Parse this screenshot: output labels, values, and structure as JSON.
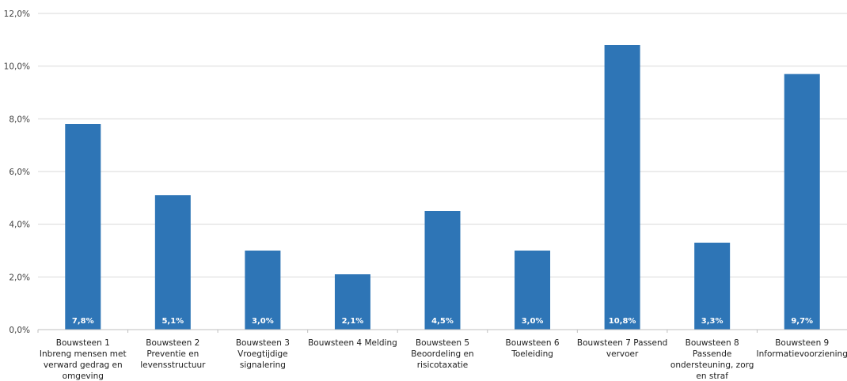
{
  "chart_data": {
    "type": "bar",
    "title": "",
    "xlabel": "",
    "ylabel": "",
    "ylim": [
      0,
      12
    ],
    "yticks": [
      "0,0%",
      "2,0%",
      "4,0%",
      "6,0%",
      "8,0%",
      "10,0%",
      "12,0%"
    ],
    "grid": true,
    "legend": "none",
    "bar_color": "#2e75b6",
    "categories": [
      [
        "Bouwsteen 1",
        "Inbreng mensen met",
        "verward gedrag en",
        "omgeving"
      ],
      [
        "Bouwsteen 2",
        "Preventie en",
        "levensstructuur"
      ],
      [
        "Bouwsteen 3",
        "Vroegtijdige",
        "signalering"
      ],
      [
        "Bouwsteen 4 Melding"
      ],
      [
        "Bouwsteen 5",
        "Beoordeling en",
        "risicotaxatie"
      ],
      [
        "Bouwsteen 6",
        "Toeleiding"
      ],
      [
        "Bouwsteen 7 Passend",
        "vervoer"
      ],
      [
        "Bouwsteen 8",
        "Passende",
        "ondersteuning, zorg",
        "en straf"
      ],
      [
        "Bouwsteen 9",
        "Informatievoorziening"
      ]
    ],
    "values": [
      7.8,
      5.1,
      3.0,
      2.1,
      4.5,
      3.0,
      10.8,
      3.3,
      9.7
    ],
    "data_labels": [
      "7,8%",
      "5,1%",
      "3,0%",
      "2,1%",
      "4,5%",
      "3,0%",
      "10,8%",
      "3,3%",
      "9,7%"
    ]
  }
}
